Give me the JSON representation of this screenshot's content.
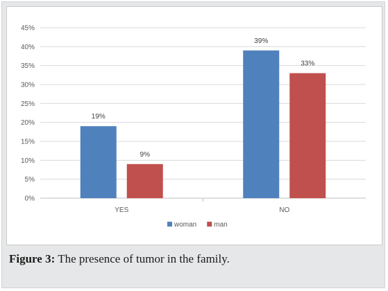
{
  "figure": {
    "caption_label": "Figure 3:",
    "caption_text": " The presence of tumor in the family."
  },
  "colors": {
    "woman": "#4f81bd",
    "man": "#c0504d",
    "grid": "#d9d9d9",
    "axis": "#bfbfbf"
  },
  "chart_data": {
    "type": "bar",
    "categories": [
      "YES",
      "NO"
    ],
    "series": [
      {
        "name": "woman",
        "values": [
          19,
          39
        ]
      },
      {
        "name": "man",
        "values": [
          9,
          33
        ]
      }
    ],
    "data_labels": [
      [
        "19%",
        "39%"
      ],
      [
        "9%",
        "33%"
      ]
    ],
    "y_ticks": [
      "0%",
      "5%",
      "10%",
      "15%",
      "20%",
      "25%",
      "30%",
      "35%",
      "40%",
      "45%"
    ],
    "ylim": [
      0,
      45
    ],
    "ytick_step": 5,
    "grid": true,
    "legend_position": "bottom"
  }
}
